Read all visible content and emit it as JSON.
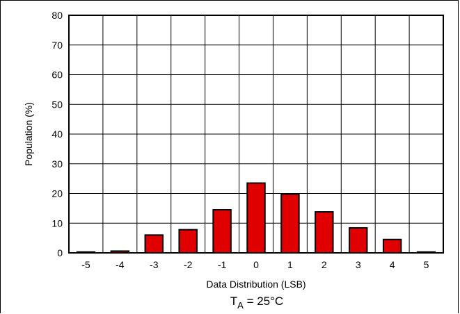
{
  "chart_data": {
    "type": "bar",
    "categories": [
      "-5",
      "-4",
      "-3",
      "-2",
      "-1",
      "0",
      "1",
      "2",
      "3",
      "4",
      "5"
    ],
    "values": [
      0.3,
      0.6,
      6,
      7.8,
      14.5,
      23.5,
      19.8,
      13.8,
      8.4,
      4.5,
      0.3
    ],
    "xlabel": "Data Distribution (LSB)",
    "ylabel": "Population (%)",
    "ylim": [
      0,
      80
    ],
    "yticks": [
      0,
      10,
      20,
      30,
      40,
      50,
      60,
      70,
      80
    ],
    "grid": true,
    "bar_color": "#e00000",
    "caption_main": "T",
    "caption_sub": "A",
    "caption_rest": " = 25°C"
  }
}
